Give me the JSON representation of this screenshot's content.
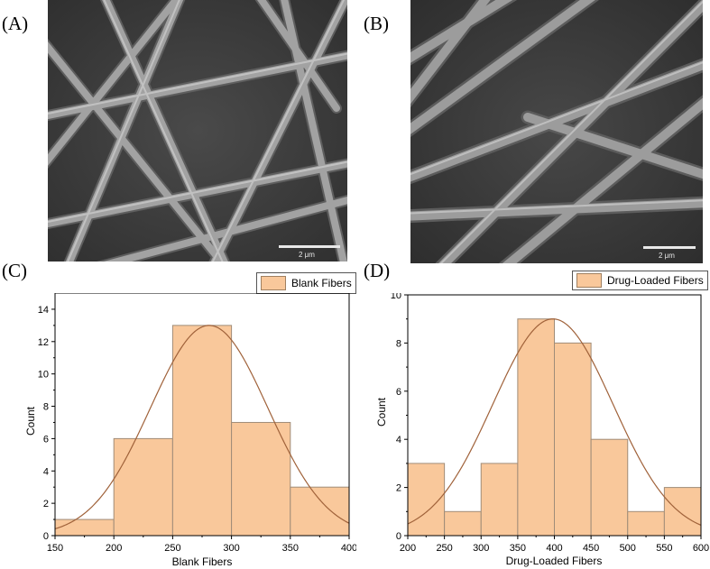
{
  "panels": {
    "a_label": "(A)",
    "b_label": "(B)",
    "c_label": "(C)",
    "d_label": "(D)",
    "a_scale": "2 μm",
    "b_scale": "2 μm"
  },
  "colors": {
    "bar_fill": "#f9c89b",
    "bar_stroke": "#a08c78",
    "curve": "#a0623a",
    "sem_background": "#454545",
    "fiber": "#9a9a9a"
  },
  "chart_data": [
    {
      "type": "bar",
      "legend": "Blank Fibers",
      "xlabel": "Blank Fibers",
      "ylabel": "Count",
      "bin_edges": [
        150,
        200,
        250,
        300,
        350,
        400
      ],
      "values": [
        1,
        6,
        13,
        7,
        3
      ],
      "xlim": [
        150,
        400
      ],
      "ylim": [
        0,
        15
      ],
      "xticks": [
        150,
        200,
        250,
        300,
        350,
        400
      ],
      "yticks": [
        0,
        2,
        4,
        6,
        8,
        10,
        12,
        14
      ],
      "fit": {
        "type": "normal",
        "mean": 281,
        "sd": 50,
        "peak": 13
      },
      "grid": false,
      "legend_position": "top-right"
    },
    {
      "type": "bar",
      "legend": "Drug-Loaded Fibers",
      "xlabel": "Drug-Loaded Fibers",
      "ylabel": "Count",
      "bin_edges": [
        200,
        250,
        300,
        350,
        400,
        450,
        500,
        550,
        600
      ],
      "values": [
        3,
        1,
        3,
        9,
        8,
        4,
        1,
        2
      ],
      "xlim": [
        200,
        600
      ],
      "ylim": [
        0,
        10
      ],
      "xticks": [
        200,
        250,
        300,
        350,
        400,
        450,
        500,
        550,
        600
      ],
      "yticks": [
        0,
        2,
        4,
        6,
        8,
        10
      ],
      "fit": {
        "type": "normal",
        "mean": 398,
        "sd": 82,
        "peak": 9
      },
      "grid": false,
      "legend_position": "top-right"
    }
  ]
}
